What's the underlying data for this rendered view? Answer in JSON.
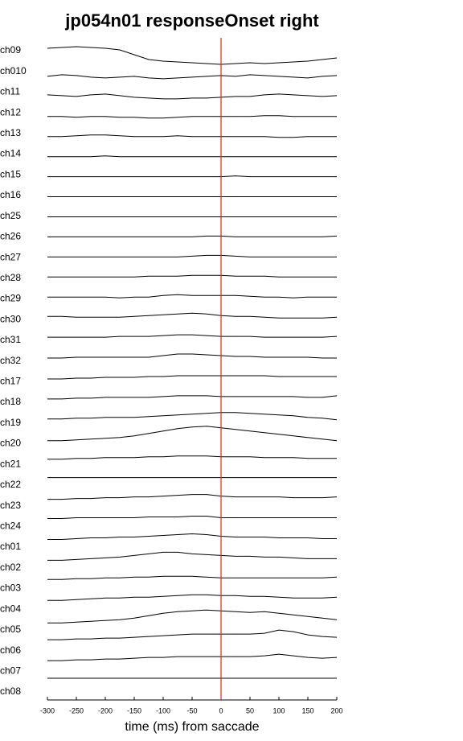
{
  "chart_data": {
    "type": "stacked-traces",
    "title": "jp054n01 responseOnset right",
    "xlabel": "time (ms) from saccade",
    "xlim": [
      -300,
      200
    ],
    "xticks": [
      -300,
      -250,
      -200,
      -150,
      -100,
      -50,
      0,
      50,
      100,
      150,
      200
    ],
    "event_x": 0,
    "event_color": "#e8221c",
    "line_color": "#000000",
    "x": [
      -300,
      -275,
      -250,
      -225,
      -200,
      -175,
      -150,
      -125,
      -100,
      -75,
      -50,
      -25,
      0,
      25,
      50,
      75,
      100,
      125,
      150,
      175,
      200
    ],
    "series": [
      {
        "name": "ch09",
        "values": [
          10,
          11,
          12,
          11,
          10,
          8,
          2,
          -4,
          -6,
          -7,
          -8,
          -9,
          -10,
          -9,
          -8,
          -9,
          -8,
          -7,
          -6,
          -4,
          -2
        ]
      },
      {
        "name": "ch010",
        "values": [
          0,
          2,
          1,
          -1,
          -2,
          -1,
          0,
          -2,
          -3,
          -2,
          -1,
          0,
          1,
          0,
          2,
          1,
          0,
          -1,
          -2,
          0,
          1
        ]
      },
      {
        "name": "ch11",
        "values": [
          2,
          1,
          0,
          2,
          3,
          1,
          -1,
          -2,
          -3,
          -3,
          -2,
          -2,
          -1,
          0,
          0,
          2,
          3,
          2,
          1,
          0,
          1
        ]
      },
      {
        "name": "ch12",
        "values": [
          0,
          0,
          -1,
          0,
          0,
          -1,
          -1,
          -2,
          -2,
          -1,
          0,
          0,
          0,
          0,
          0,
          1,
          1,
          0,
          0,
          0,
          0
        ]
      },
      {
        "name": "ch13",
        "values": [
          0,
          0,
          1,
          2,
          2,
          1,
          0,
          0,
          0,
          1,
          0,
          0,
          0,
          0,
          0,
          0,
          -1,
          -1,
          0,
          0,
          0
        ]
      },
      {
        "name": "ch14",
        "values": [
          0,
          0,
          0,
          0,
          1,
          0,
          0,
          0,
          0,
          0,
          0,
          0,
          0,
          0,
          0,
          0,
          0,
          0,
          0,
          0,
          0
        ]
      },
      {
        "name": "ch15",
        "values": [
          0,
          0,
          0,
          0,
          0,
          0,
          0,
          0,
          0,
          0,
          0,
          0,
          0,
          1,
          0,
          0,
          0,
          0,
          0,
          0,
          0
        ]
      },
      {
        "name": "ch16",
        "values": [
          0,
          0,
          0,
          0,
          0,
          0,
          0,
          0,
          0,
          0,
          0,
          0,
          0,
          0,
          0,
          0,
          0,
          0,
          0,
          0,
          0
        ]
      },
      {
        "name": "ch25",
        "values": [
          0,
          0,
          0,
          0,
          0,
          0,
          0,
          0,
          0,
          0,
          0,
          0,
          0,
          0,
          0,
          0,
          0,
          0,
          0,
          0,
          0
        ]
      },
      {
        "name": "ch26",
        "values": [
          0,
          0,
          0,
          0,
          0,
          0,
          0,
          0,
          0,
          0,
          0,
          1,
          1,
          0,
          0,
          0,
          0,
          0,
          0,
          0,
          1
        ]
      },
      {
        "name": "ch27",
        "values": [
          0,
          0,
          0,
          0,
          0,
          0,
          0,
          0,
          0,
          0,
          1,
          2,
          2,
          1,
          0,
          0,
          0,
          0,
          0,
          0,
          0
        ]
      },
      {
        "name": "ch28",
        "values": [
          0,
          0,
          0,
          0,
          0,
          0,
          0,
          1,
          1,
          1,
          2,
          2,
          2,
          1,
          1,
          1,
          0,
          0,
          0,
          0,
          0
        ]
      },
      {
        "name": "ch29",
        "values": [
          0,
          0,
          0,
          0,
          0,
          -1,
          0,
          0,
          2,
          3,
          2,
          2,
          2,
          2,
          1,
          0,
          0,
          -1,
          0,
          0,
          0
        ]
      },
      {
        "name": "ch30",
        "values": [
          1,
          1,
          0,
          0,
          0,
          0,
          1,
          2,
          3,
          4,
          5,
          4,
          2,
          1,
          1,
          0,
          -1,
          -1,
          -1,
          -1,
          0
        ]
      },
      {
        "name": "ch31",
        "values": [
          0,
          0,
          0,
          0,
          0,
          1,
          1,
          1,
          2,
          3,
          3,
          2,
          1,
          1,
          1,
          0,
          0,
          0,
          0,
          0,
          1
        ]
      },
      {
        "name": "ch32",
        "values": [
          -1,
          -1,
          0,
          0,
          0,
          0,
          0,
          0,
          2,
          4,
          4,
          3,
          2,
          1,
          1,
          0,
          0,
          0,
          0,
          -1,
          -1
        ]
      },
      {
        "name": "ch17",
        "values": [
          -2,
          -2,
          -1,
          -1,
          0,
          0,
          0,
          1,
          1,
          2,
          2,
          2,
          2,
          2,
          2,
          2,
          1,
          1,
          1,
          1,
          1
        ]
      },
      {
        "name": "ch18",
        "values": [
          -2,
          -2,
          -1,
          -1,
          0,
          0,
          0,
          0,
          1,
          2,
          2,
          2,
          1,
          1,
          1,
          1,
          1,
          1,
          0,
          0,
          2
        ]
      },
      {
        "name": "ch19",
        "values": [
          -2,
          -2,
          -1,
          -1,
          0,
          0,
          0,
          1,
          2,
          3,
          4,
          5,
          6,
          6,
          5,
          4,
          3,
          2,
          0,
          -1,
          -3
        ]
      },
      {
        "name": "ch20",
        "values": [
          -4,
          -4,
          -3,
          -2,
          -1,
          0,
          2,
          5,
          8,
          11,
          13,
          14,
          12,
          10,
          8,
          6,
          4,
          2,
          0,
          -2,
          -4
        ]
      },
      {
        "name": "ch21",
        "values": [
          -2,
          -2,
          -1,
          -1,
          0,
          0,
          0,
          1,
          1,
          2,
          2,
          2,
          1,
          1,
          1,
          0,
          0,
          0,
          -1,
          -1,
          -1
        ]
      },
      {
        "name": "ch22",
        "values": [
          0,
          0,
          0,
          0,
          0,
          0,
          0,
          0,
          0,
          0,
          0,
          0,
          0,
          0,
          0,
          0,
          0,
          0,
          0,
          0,
          0
        ]
      },
      {
        "name": "ch23",
        "values": [
          -2,
          -2,
          -1,
          -1,
          0,
          0,
          1,
          1,
          2,
          3,
          4,
          4,
          2,
          1,
          1,
          1,
          1,
          0,
          0,
          0,
          1
        ]
      },
      {
        "name": "ch24",
        "values": [
          -1,
          -1,
          0,
          0,
          0,
          0,
          0,
          1,
          1,
          1,
          2,
          2,
          0,
          0,
          0,
          0,
          0,
          0,
          0,
          0,
          0
        ]
      },
      {
        "name": "ch01",
        "values": [
          -2,
          -2,
          -1,
          0,
          0,
          1,
          1,
          2,
          3,
          4,
          5,
          4,
          2,
          1,
          1,
          1,
          0,
          0,
          0,
          -1,
          -1
        ]
      },
      {
        "name": "ch02",
        "values": [
          -3,
          -3,
          -2,
          -1,
          0,
          1,
          3,
          5,
          7,
          7,
          5,
          4,
          3,
          2,
          2,
          1,
          1,
          0,
          -1,
          -1,
          -1
        ]
      },
      {
        "name": "ch03",
        "values": [
          -2,
          -2,
          -1,
          -1,
          0,
          0,
          1,
          1,
          2,
          2,
          2,
          1,
          0,
          0,
          0,
          0,
          0,
          0,
          0,
          0,
          1
        ]
      },
      {
        "name": "ch04",
        "values": [
          -3,
          -3,
          -2,
          -1,
          0,
          0,
          1,
          1,
          2,
          3,
          4,
          4,
          3,
          3,
          2,
          2,
          1,
          0,
          0,
          0,
          1
        ]
      },
      {
        "name": "ch05",
        "values": [
          -6,
          -6,
          -5,
          -4,
          -3,
          -2,
          0,
          3,
          6,
          8,
          9,
          10,
          9,
          8,
          7,
          8,
          6,
          4,
          2,
          0,
          -2
        ]
      },
      {
        "name": "ch06",
        "values": [
          -2,
          -2,
          -1,
          -1,
          0,
          0,
          1,
          2,
          3,
          4,
          5,
          5,
          5,
          5,
          5,
          6,
          10,
          8,
          4,
          2,
          1
        ]
      },
      {
        "name": "ch07",
        "values": [
          -3,
          -3,
          -2,
          -2,
          -1,
          -1,
          0,
          1,
          1,
          2,
          2,
          2,
          2,
          2,
          2,
          3,
          5,
          3,
          1,
          0,
          1
        ]
      },
      {
        "name": "ch08",
        "values": [
          0,
          0,
          0,
          0,
          0,
          0,
          0,
          0,
          0,
          0,
          0,
          0,
          0,
          0,
          0,
          0,
          0,
          0,
          0,
          0,
          0
        ]
      }
    ]
  }
}
